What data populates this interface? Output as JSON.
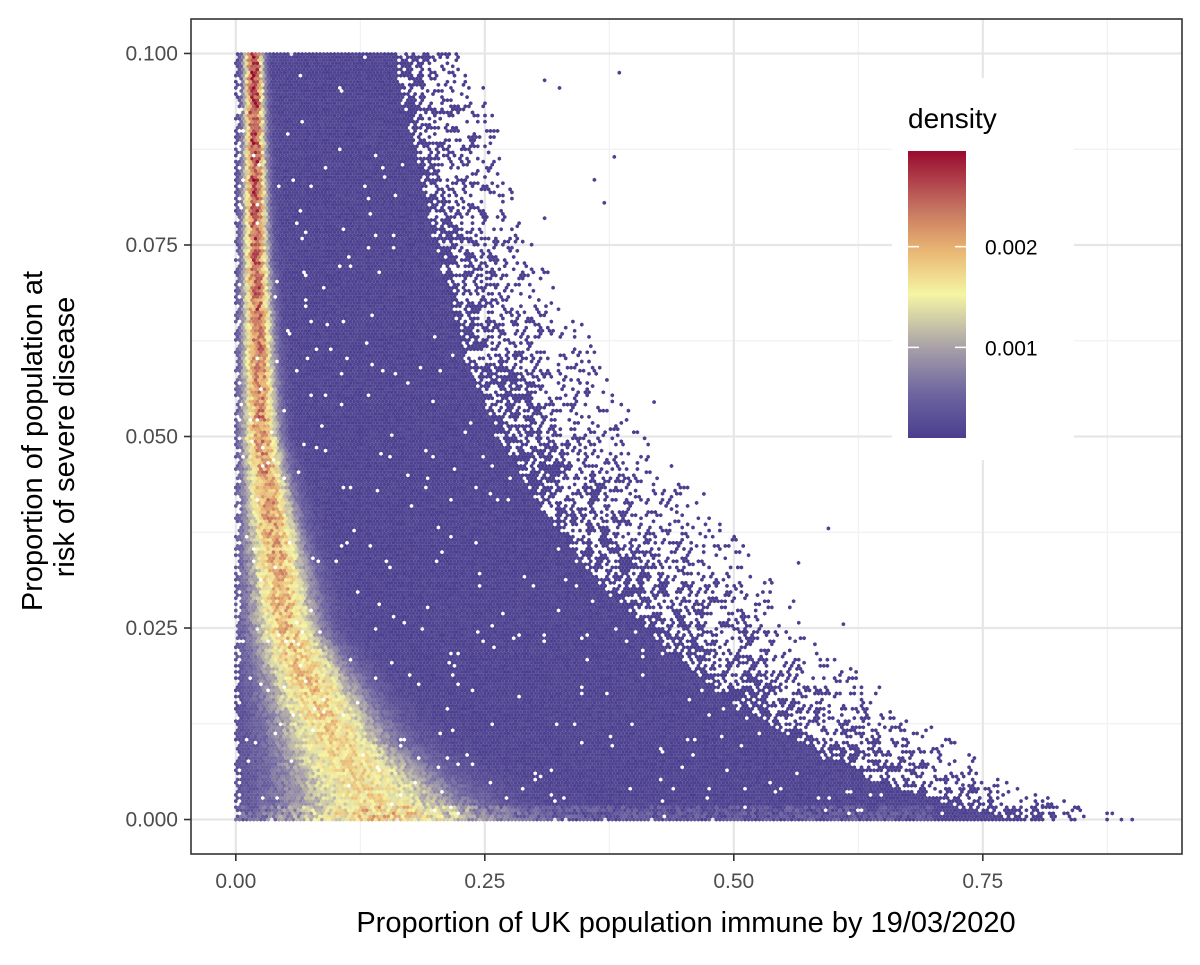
{
  "chart_data": {
    "type": "heatmap",
    "subtype": "hexbin",
    "title": "",
    "xlabel": "Proportion of UK population immune by 19/03/2020",
    "ylabel_lines": [
      "Proportion of population at",
      "risk of severe disease"
    ],
    "xlim": [
      -0.045,
      0.95
    ],
    "ylim": [
      -0.0045,
      0.1045
    ],
    "x_ticks": [
      0.0,
      0.25,
      0.5,
      0.75
    ],
    "x_tick_labels": [
      "0.00",
      "0.25",
      "0.50",
      "0.75"
    ],
    "y_ticks": [
      0.0,
      0.025,
      0.05,
      0.075,
      0.1
    ],
    "y_tick_labels": [
      "0.000",
      "0.025",
      "0.050",
      "0.075",
      "0.100"
    ],
    "grid": true,
    "hex_size": 0.0036,
    "legend": {
      "title": "density",
      "placement": "top-right inside",
      "range": [
        0.0001,
        0.00295
      ],
      "ticks": [
        0.001,
        0.002
      ],
      "tick_labels": [
        "0.001",
        "0.002"
      ],
      "colors": [
        "#4a3e8f",
        "#6f66a0",
        "#a9a2a8",
        "#f5f5a3",
        "#e8b371",
        "#c06a5e",
        "#990a2f"
      ]
    },
    "density_model": {
      "ridge": [
        {
          "y": 0.1,
          "x": 0.018,
          "width": 0.009
        },
        {
          "y": 0.075,
          "x": 0.02,
          "width": 0.012
        },
        {
          "y": 0.05,
          "x": 0.025,
          "width": 0.018
        },
        {
          "y": 0.025,
          "x": 0.05,
          "width": 0.035
        },
        {
          "y": 0.01,
          "x": 0.1,
          "width": 0.06
        },
        {
          "y": 0.0,
          "x": 0.15,
          "width": 0.1
        }
      ],
      "boundary": [
        {
          "y": 0.1,
          "x": 0.16
        },
        {
          "y": 0.09,
          "x": 0.175
        },
        {
          "y": 0.075,
          "x": 0.2
        },
        {
          "y": 0.06,
          "x": 0.23
        },
        {
          "y": 0.05,
          "x": 0.265
        },
        {
          "y": 0.04,
          "x": 0.31
        },
        {
          "y": 0.03,
          "x": 0.37
        },
        {
          "y": 0.02,
          "x": 0.45
        },
        {
          "y": 0.015,
          "x": 0.5
        },
        {
          "y": 0.01,
          "x": 0.57
        },
        {
          "y": 0.005,
          "x": 0.64
        },
        {
          "y": 0.002,
          "x": 0.72
        },
        {
          "y": 0.0,
          "x": 0.78
        }
      ],
      "scatter_extent": [
        {
          "y": 0.1,
          "x": 0.24
        },
        {
          "y": 0.075,
          "x": 0.3
        },
        {
          "y": 0.05,
          "x": 0.42
        },
        {
          "y": 0.04,
          "x": 0.48
        },
        {
          "y": 0.03,
          "x": 0.55
        },
        {
          "y": 0.02,
          "x": 0.62
        },
        {
          "y": 0.01,
          "x": 0.73
        },
        {
          "y": 0.005,
          "x": 0.78
        },
        {
          "y": 0.0,
          "x": 0.9
        }
      ]
    },
    "outlier_points": [
      [
        0.385,
        0.0975
      ],
      [
        0.31,
        0.0965
      ],
      [
        0.325,
        0.0955
      ],
      [
        0.38,
        0.0865
      ],
      [
        0.36,
        0.0835
      ],
      [
        0.37,
        0.0805
      ],
      [
        0.31,
        0.0785
      ],
      [
        0.595,
        0.038
      ],
      [
        0.565,
        0.0335
      ],
      [
        0.42,
        0.0545
      ],
      [
        0.9,
        0.0
      ],
      [
        0.88,
        0.0008
      ],
      [
        0.84,
        0.0012
      ],
      [
        0.81,
        0.0018
      ],
      [
        0.845,
        0.0015
      ],
      [
        0.73,
        0.0045
      ],
      [
        0.67,
        0.0105
      ],
      [
        0.61,
        0.0255
      ],
      [
        0.56,
        0.0285
      ],
      [
        0.47,
        0.0425
      ]
    ]
  }
}
